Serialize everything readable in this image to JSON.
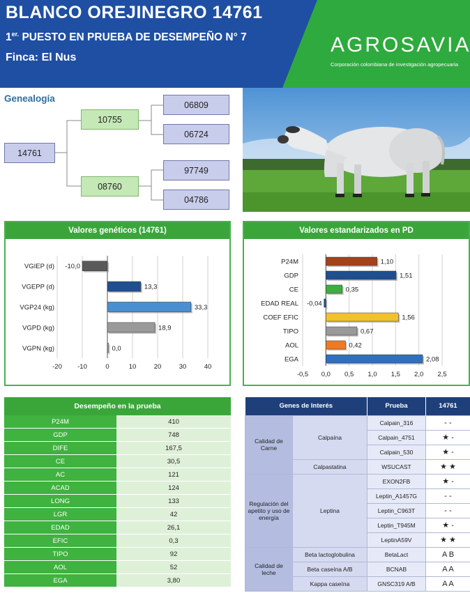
{
  "header": {
    "title": "BLANCO OREJINEGRO 14761",
    "subtitle_prefix": "1",
    "subtitle_sup": "er.",
    "subtitle": " PUESTO EN PRUEBA DE DESEMPEÑO N° 7",
    "finca": "Finca: El Nus",
    "logo_text": "AGROSAVIA",
    "logo_tagline": "Corporación colombiana de investigación agropecuaria",
    "colors": {
      "blue": "#1f4fa3",
      "green": "#2faa3e"
    }
  },
  "genealogy": {
    "title": "Genealogía",
    "animal": "14761",
    "sire": "10755",
    "dam": "08760",
    "sire_sire": "06809",
    "sire_dam": "06724",
    "dam_sire": "97749",
    "dam_dam": "04786"
  },
  "genetic_values": {
    "title": "Valores genéticos (14761)"
  },
  "standardized_values": {
    "title": "Valores estandarizados en PD"
  },
  "chart_data": [
    {
      "type": "bar",
      "orientation": "horizontal",
      "title": "Valores genéticos (14761)",
      "categories": [
        "VGIEP (d)",
        "VGEPP (d)",
        "VGP24 (kg)",
        "VGPD (kg)",
        "VGPN (kg)"
      ],
      "values": [
        -10.0,
        13.3,
        33.3,
        18.9,
        0.0
      ],
      "value_labels": [
        "-10,0",
        "13,3",
        "33,3",
        "18,9",
        "0,0"
      ],
      "xlim": [
        -20,
        40
      ],
      "xticks": [
        "-20",
        "-10",
        "0",
        "10",
        "20",
        "30",
        "40"
      ],
      "colors": [
        "#5a5a5a",
        "#1f4f8f",
        "#4a8fd0",
        "#9a9a9a",
        "#9a9a9a"
      ],
      "grid": true
    },
    {
      "type": "bar",
      "orientation": "horizontal",
      "title": "Valores estandarizados en PD",
      "categories": [
        "P24M",
        "GDP",
        "CE",
        "EDAD REAL",
        "COEF EFIC",
        "TIPO",
        "AOL",
        "EGA"
      ],
      "values": [
        1.1,
        1.51,
        0.35,
        -0.04,
        1.56,
        0.67,
        0.42,
        2.08
      ],
      "value_labels": [
        "1,10",
        "1,51",
        "0,35",
        "-0,04",
        "1,56",
        "0,67",
        "0,42",
        "2,08"
      ],
      "xlim": [
        -0.5,
        2.5
      ],
      "xticks": [
        "-0,5",
        "0,0",
        "0,5",
        "1,0",
        "1,5",
        "2,0",
        "2,5"
      ],
      "colors": [
        "#a4421a",
        "#1f4f8f",
        "#3fae3f",
        "#1f4f8f",
        "#f2c12e",
        "#9a9a9a",
        "#f07a22",
        "#2f6fc0"
      ],
      "grid": true
    }
  ],
  "performance": {
    "title": "Desempeño en la prueba",
    "rows": [
      {
        "k": "P24M",
        "v": "410"
      },
      {
        "k": "GDP",
        "v": "748"
      },
      {
        "k": "DIFE",
        "v": "167,5"
      },
      {
        "k": "CE",
        "v": "30,5"
      },
      {
        "k": "AC",
        "v": "121"
      },
      {
        "k": "ACAD",
        "v": "124"
      },
      {
        "k": "LONG",
        "v": "133"
      },
      {
        "k": "LGR",
        "v": "42"
      },
      {
        "k": "EDAD",
        "v": "26,1"
      },
      {
        "k": "EFIC",
        "v": "0,3"
      },
      {
        "k": "TIPO",
        "v": "92"
      },
      {
        "k": "AOL",
        "v": "52"
      },
      {
        "k": "EGA",
        "v": "3,80"
      }
    ]
  },
  "genes": {
    "headers": [
      "Genes de Interés",
      "Prueba",
      "14761"
    ],
    "cat_meat": "Calidad de Carne",
    "cat_appetite": "Regulación del apetito y uso de energía",
    "cat_milk": "Calidad de leche",
    "calpaina": "Calpaína",
    "calpastatina": "Calpastatina",
    "leptina": "Leptina",
    "beta_lacto": "Beta lactoglobulina",
    "beta_caseina": "Beta caseína A/B",
    "kappa": "Kappa caseína",
    "tests": [
      "Calpain_316",
      "Calpain_4751",
      "Calpain_530",
      "WSUCAST",
      "EXON2FB",
      "Leptin_A1457G",
      "Leptin_C963T",
      "Leptin_T945M",
      "LeptinA59V",
      "BetaLact",
      "BCNAB",
      "GNSC319 A/B"
    ],
    "results": [
      "- -",
      "★ -",
      "★ -",
      "★ ★",
      "★ -",
      "- -",
      "- -",
      "★ -",
      "★ ★",
      "A B",
      "A A",
      "A A"
    ]
  }
}
